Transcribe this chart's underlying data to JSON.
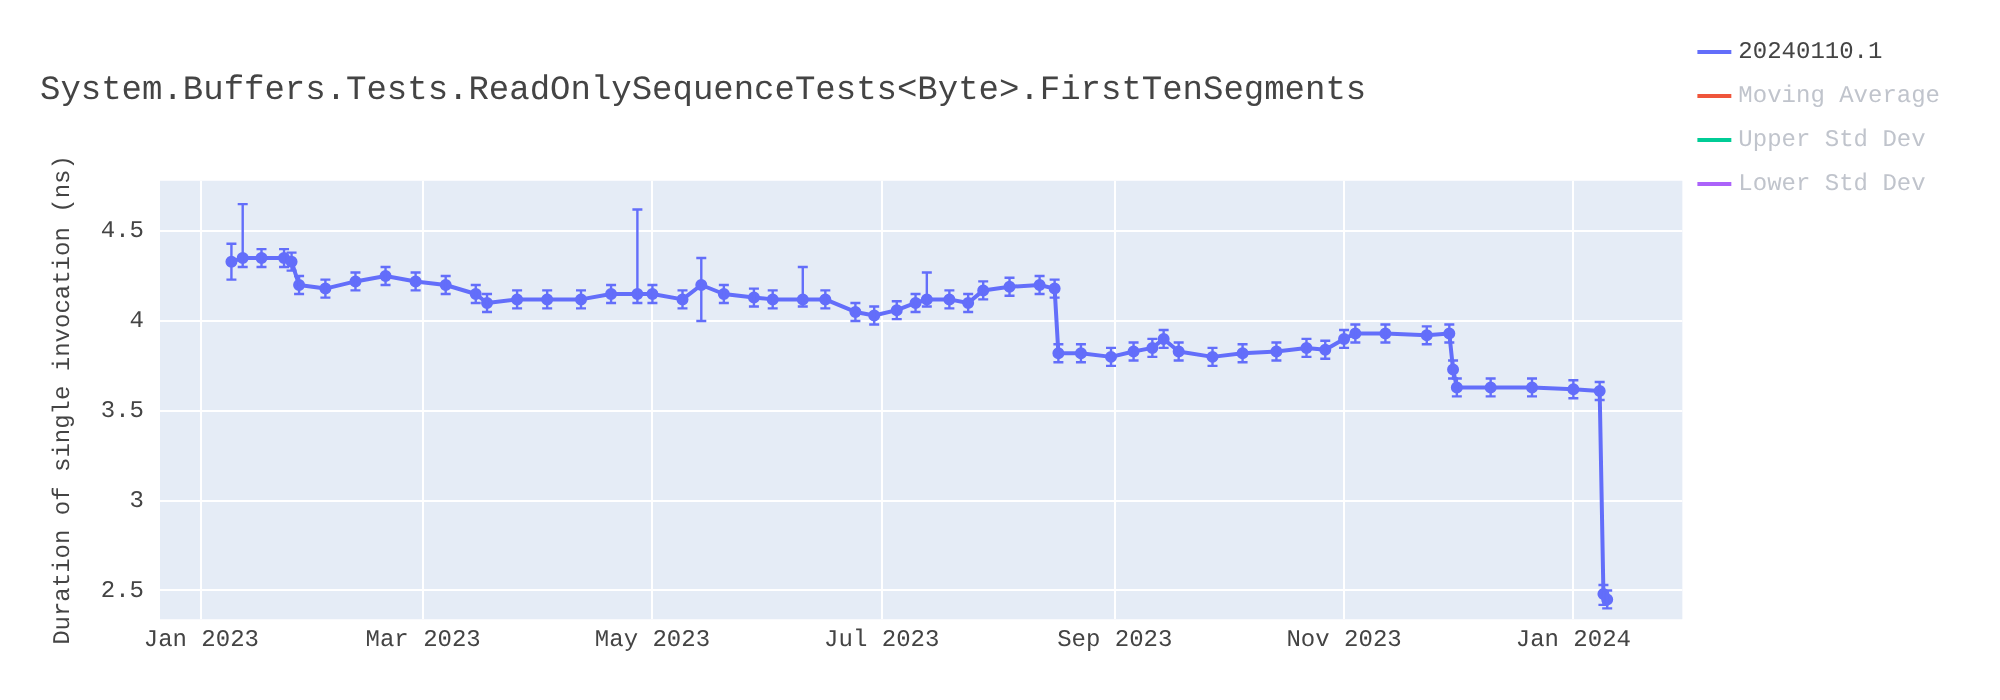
{
  "chart_data": {
    "type": "line",
    "title": "System.Buffers.Tests.ReadOnlySequenceTests<Byte>.FirstTenSegments",
    "ylabel": "Duration of single invocation (ns)",
    "x": [
      "2023-01-09",
      "2023-01-12",
      "2023-01-17",
      "2023-01-23",
      "2023-01-25",
      "2023-01-27",
      "2023-02-03",
      "2023-02-11",
      "2023-02-19",
      "2023-02-27",
      "2023-03-07",
      "2023-03-15",
      "2023-03-18",
      "2023-03-26",
      "2023-04-03",
      "2023-04-12",
      "2023-04-20",
      "2023-04-27",
      "2023-05-01",
      "2023-05-09",
      "2023-05-14",
      "2023-05-20",
      "2023-05-28",
      "2023-06-02",
      "2023-06-10",
      "2023-06-16",
      "2023-06-24",
      "2023-06-29",
      "2023-07-05",
      "2023-07-10",
      "2023-07-13",
      "2023-07-19",
      "2023-07-24",
      "2023-07-28",
      "2023-08-04",
      "2023-08-12",
      "2023-08-16",
      "2023-08-17",
      "2023-08-23",
      "2023-08-31",
      "2023-09-06",
      "2023-09-11",
      "2023-09-14",
      "2023-09-18",
      "2023-09-27",
      "2023-10-05",
      "2023-10-14",
      "2023-10-22",
      "2023-10-27",
      "2023-11-01",
      "2023-11-04",
      "2023-11-12",
      "2023-11-23",
      "2023-11-29",
      "2023-11-30",
      "2023-12-01",
      "2023-12-10",
      "2023-12-21",
      "2024-01-01",
      "2024-01-08",
      "2024-01-09",
      "2024-01-10"
    ],
    "series": [
      {
        "name": "20240110.1",
        "color": "#636efa",
        "values": [
          4.33,
          4.35,
          4.35,
          4.35,
          4.33,
          4.2,
          4.18,
          4.22,
          4.25,
          4.22,
          4.2,
          4.15,
          4.1,
          4.12,
          4.12,
          4.12,
          4.15,
          4.15,
          4.15,
          4.12,
          4.2,
          4.15,
          4.13,
          4.12,
          4.12,
          4.12,
          4.05,
          4.03,
          4.06,
          4.1,
          4.12,
          4.12,
          4.1,
          4.17,
          4.19,
          4.2,
          4.18,
          3.82,
          3.82,
          3.8,
          3.83,
          3.85,
          3.9,
          3.83,
          3.8,
          3.82,
          3.83,
          3.85,
          3.84,
          3.9,
          3.93,
          3.93,
          3.92,
          3.93,
          3.73,
          3.63,
          3.63,
          3.63,
          3.62,
          3.61,
          2.48,
          2.45
        ],
        "errors": [
          0.1,
          [
            4.3,
            4.65
          ],
          0.05,
          0.05,
          0.05,
          0.05,
          0.05,
          0.05,
          0.05,
          0.05,
          0.05,
          0.05,
          0.05,
          0.05,
          0.05,
          0.05,
          0.05,
          [
            4.1,
            4.62
          ],
          0.05,
          0.05,
          [
            4,
            4.35
          ],
          0.05,
          0.05,
          0.05,
          [
            4.08,
            4.3
          ],
          0.05,
          0.05,
          0.05,
          0.05,
          0.05,
          [
            4.08,
            4.27
          ],
          0.05,
          0.05,
          0.05,
          0.05,
          0.05,
          0.05,
          0.05,
          0.05,
          0.05,
          0.05,
          0.05,
          0.05,
          0.05,
          0.05,
          0.05,
          0.05,
          0.05,
          0.05,
          0.05,
          0.05,
          0.05,
          0.05,
          0.05,
          0.05,
          0.05,
          0.05,
          0.05,
          0.05,
          0.05,
          [
            2.42,
            2.53
          ],
          0.05
        ]
      },
      {
        "name": "Moving Average",
        "color": "#ef553b",
        "values": [
          null,
          null,
          null,
          null,
          null,
          null,
          null,
          null,
          null,
          null,
          null,
          null,
          null,
          null,
          null,
          null,
          null,
          null,
          null,
          null,
          null,
          null,
          null,
          null,
          null,
          null,
          null,
          null,
          null,
          null,
          null,
          null,
          null,
          null,
          null,
          null,
          null,
          null,
          null,
          null,
          null,
          null,
          null,
          null,
          null,
          null,
          null,
          null,
          null,
          null,
          null,
          null,
          null,
          null,
          null,
          null,
          null,
          null,
          null,
          null,
          null,
          null
        ]
      },
      {
        "name": "Upper Std Dev",
        "color": "#00cc96",
        "values": [
          null,
          null,
          null,
          null,
          null,
          null,
          null,
          null,
          null,
          null,
          null,
          null,
          null,
          null,
          null,
          null,
          null,
          null,
          null,
          null,
          null,
          null,
          null,
          null,
          null,
          null,
          null,
          null,
          null,
          null,
          null,
          null,
          null,
          null,
          null,
          null,
          null,
          null,
          null,
          null,
          null,
          null,
          null,
          null,
          null,
          null,
          null,
          null,
          null,
          null,
          null,
          null,
          null,
          null,
          null,
          null,
          null,
          null,
          null,
          null,
          null,
          null
        ]
      },
      {
        "name": "Lower Std Dev",
        "color": "#ab63fa",
        "values": [
          null,
          null,
          null,
          null,
          null,
          null,
          null,
          null,
          null,
          null,
          null,
          null,
          null,
          null,
          null,
          null,
          null,
          null,
          null,
          null,
          null,
          null,
          null,
          null,
          null,
          null,
          null,
          null,
          null,
          null,
          null,
          null,
          null,
          null,
          null,
          null,
          null,
          null,
          null,
          null,
          null,
          null,
          null,
          null,
          null,
          null,
          null,
          null,
          null,
          null,
          null,
          null,
          null,
          null,
          null,
          null,
          null,
          null,
          null,
          null,
          null,
          null
        ]
      }
    ],
    "xlim": [
      "2022-12-21",
      "2024-01-30"
    ],
    "xticks": [
      {
        "value": "2023-01-01",
        "label": "Jan 2023"
      },
      {
        "value": "2023-03-01",
        "label": "Mar 2023"
      },
      {
        "value": "2023-05-01",
        "label": "May 2023"
      },
      {
        "value": "2023-07-01",
        "label": "Jul 2023"
      },
      {
        "value": "2023-09-01",
        "label": "Sep 2023"
      },
      {
        "value": "2023-11-01",
        "label": "Nov 2023"
      },
      {
        "value": "2024-01-01",
        "label": "Jan 2024"
      }
    ],
    "ylim": [
      2.34,
      4.78
    ],
    "yticks": [
      2.5,
      3,
      3.5,
      4,
      4.5
    ],
    "grid": true,
    "legend": "right",
    "marker": "circle",
    "line_style": "solid"
  }
}
